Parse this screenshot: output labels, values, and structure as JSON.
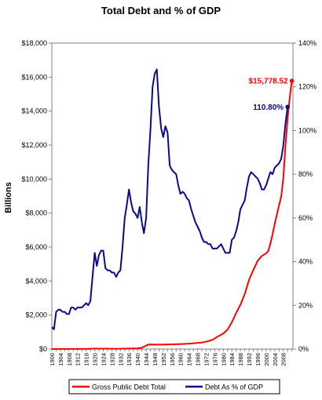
{
  "chart_data": {
    "type": "line",
    "title": "Total Debt and %  of GDP",
    "ylabel": "Billions",
    "ylabel_right": "",
    "xlabel": "",
    "ylim": [
      0,
      18000
    ],
    "ylim_right": [
      0,
      140
    ],
    "y_ticks": [
      "$0",
      "$2,000",
      "$4,000",
      "$6,000",
      "$8,000",
      "$10,000",
      "$12,000",
      "$14,000",
      "$16,000",
      "$18,000"
    ],
    "y_right_ticks": [
      "0%",
      "20%",
      "40%",
      "60%",
      "80%",
      "100%",
      "120%",
      "140%"
    ],
    "x_ticks": [
      "1900",
      "1904",
      "1908",
      "1912",
      "1916",
      "1920",
      "1924",
      "1928",
      "1932",
      "1936",
      "1940",
      "1944",
      "1948",
      "1952",
      "1956",
      "1960",
      "1964",
      "1968",
      "1972",
      "1976",
      "1980",
      "1984",
      "1988",
      "1992",
      "1996",
      "2000",
      "2004",
      "2008"
    ],
    "grid": false,
    "legend_position": "bottom",
    "series": [
      {
        "name": "Gross Public Debt Total",
        "axis": "left",
        "color": "#ff0000",
        "points": [
          [
            1900,
            2
          ],
          [
            1910,
            3
          ],
          [
            1916,
            3
          ],
          [
            1917,
            6
          ],
          [
            1918,
            14
          ],
          [
            1919,
            25
          ],
          [
            1925,
            21
          ],
          [
            1930,
            16
          ],
          [
            1935,
            29
          ],
          [
            1940,
            43
          ],
          [
            1942,
            72
          ],
          [
            1943,
            137
          ],
          [
            1944,
            201
          ],
          [
            1945,
            259
          ],
          [
            1946,
            269
          ],
          [
            1950,
            257
          ],
          [
            1955,
            274
          ],
          [
            1960,
            291
          ],
          [
            1965,
            322
          ],
          [
            1970,
            381
          ],
          [
            1972,
            427
          ],
          [
            1975,
            542
          ],
          [
            1977,
            706
          ],
          [
            1980,
            909
          ],
          [
            1982,
            1142
          ],
          [
            1984,
            1572
          ],
          [
            1986,
            2125
          ],
          [
            1988,
            2602
          ],
          [
            1990,
            3233
          ],
          [
            1992,
            4065
          ],
          [
            1994,
            4643
          ],
          [
            1996,
            5181
          ],
          [
            1998,
            5478
          ],
          [
            2000,
            5629
          ],
          [
            2001,
            5770
          ],
          [
            2002,
            6198
          ],
          [
            2003,
            6760
          ],
          [
            2004,
            7355
          ],
          [
            2005,
            7905
          ],
          [
            2006,
            8451
          ],
          [
            2007,
            8951
          ],
          [
            2008,
            10025
          ],
          [
            2009,
            11910
          ],
          [
            2010,
            13562
          ],
          [
            2011,
            14790
          ],
          [
            2012,
            15778.52
          ]
        ],
        "label": "$15,778.52"
      },
      {
        "name": "Debt As % of GDP",
        "axis": "right",
        "color": "#0a0a8c",
        "points": [
          [
            1900,
            10
          ],
          [
            1901,
            9
          ],
          [
            1902,
            17
          ],
          [
            1903,
            18
          ],
          [
            1904,
            18
          ],
          [
            1905,
            17
          ],
          [
            1906,
            17
          ],
          [
            1907,
            16
          ],
          [
            1908,
            16
          ],
          [
            1909,
            19
          ],
          [
            1910,
            19
          ],
          [
            1911,
            18
          ],
          [
            1912,
            19
          ],
          [
            1913,
            19
          ],
          [
            1914,
            19
          ],
          [
            1915,
            20
          ],
          [
            1916,
            21
          ],
          [
            1917,
            20
          ],
          [
            1918,
            22
          ],
          [
            1919,
            33
          ],
          [
            1920,
            44
          ],
          [
            1921,
            38
          ],
          [
            1922,
            43
          ],
          [
            1923,
            45
          ],
          [
            1924,
            45
          ],
          [
            1925,
            37
          ],
          [
            1926,
            36
          ],
          [
            1927,
            36
          ],
          [
            1928,
            35
          ],
          [
            1929,
            35
          ],
          [
            1930,
            33
          ],
          [
            1931,
            35
          ],
          [
            1932,
            36
          ],
          [
            1933,
            47
          ],
          [
            1934,
            60
          ],
          [
            1935,
            66
          ],
          [
            1936,
            73
          ],
          [
            1937,
            67
          ],
          [
            1938,
            63
          ],
          [
            1939,
            62
          ],
          [
            1940,
            60
          ],
          [
            1941,
            65
          ],
          [
            1942,
            58
          ],
          [
            1943,
            53
          ],
          [
            1944,
            60
          ],
          [
            1945,
            84
          ],
          [
            1946,
            100
          ],
          [
            1947,
            120
          ],
          [
            1948,
            126
          ],
          [
            1949,
            128
          ],
          [
            1950,
            111
          ],
          [
            1951,
            101
          ],
          [
            1952,
            97
          ],
          [
            1953,
            102
          ],
          [
            1954,
            99
          ],
          [
            1955,
            84
          ],
          [
            1956,
            82
          ],
          [
            1957,
            81
          ],
          [
            1958,
            80
          ],
          [
            1959,
            75
          ],
          [
            1960,
            71
          ],
          [
            1961,
            72
          ],
          [
            1962,
            71
          ],
          [
            1963,
            69
          ],
          [
            1964,
            68
          ],
          [
            1965,
            64
          ],
          [
            1966,
            61
          ],
          [
            1967,
            58
          ],
          [
            1968,
            56
          ],
          [
            1969,
            54
          ],
          [
            1970,
            51
          ],
          [
            1971,
            49
          ],
          [
            1972,
            49
          ],
          [
            1973,
            48
          ],
          [
            1974,
            48
          ],
          [
            1975,
            46
          ],
          [
            1976,
            46
          ],
          [
            1977,
            46
          ],
          [
            1978,
            47
          ],
          [
            1979,
            48
          ],
          [
            1980,
            46
          ],
          [
            1981,
            44
          ],
          [
            1982,
            44
          ],
          [
            1983,
            44
          ],
          [
            1984,
            50
          ],
          [
            1985,
            51
          ],
          [
            1986,
            54
          ],
          [
            1987,
            58
          ],
          [
            1988,
            64
          ],
          [
            1989,
            66
          ],
          [
            1990,
            68
          ],
          [
            1991,
            74
          ],
          [
            1992,
            79
          ],
          [
            1993,
            81
          ],
          [
            1994,
            80
          ],
          [
            1995,
            79
          ],
          [
            1996,
            78
          ],
          [
            1997,
            76
          ],
          [
            1998,
            73
          ],
          [
            1999,
            73
          ],
          [
            2000,
            75
          ],
          [
            2001,
            78
          ],
          [
            2002,
            81
          ],
          [
            2003,
            80
          ],
          [
            2004,
            83
          ],
          [
            2005,
            84
          ],
          [
            2006,
            85
          ],
          [
            2007,
            87
          ],
          [
            2008,
            93
          ],
          [
            2009,
            103
          ],
          [
            2010,
            110.8
          ]
        ],
        "label": "110.80%"
      }
    ]
  }
}
